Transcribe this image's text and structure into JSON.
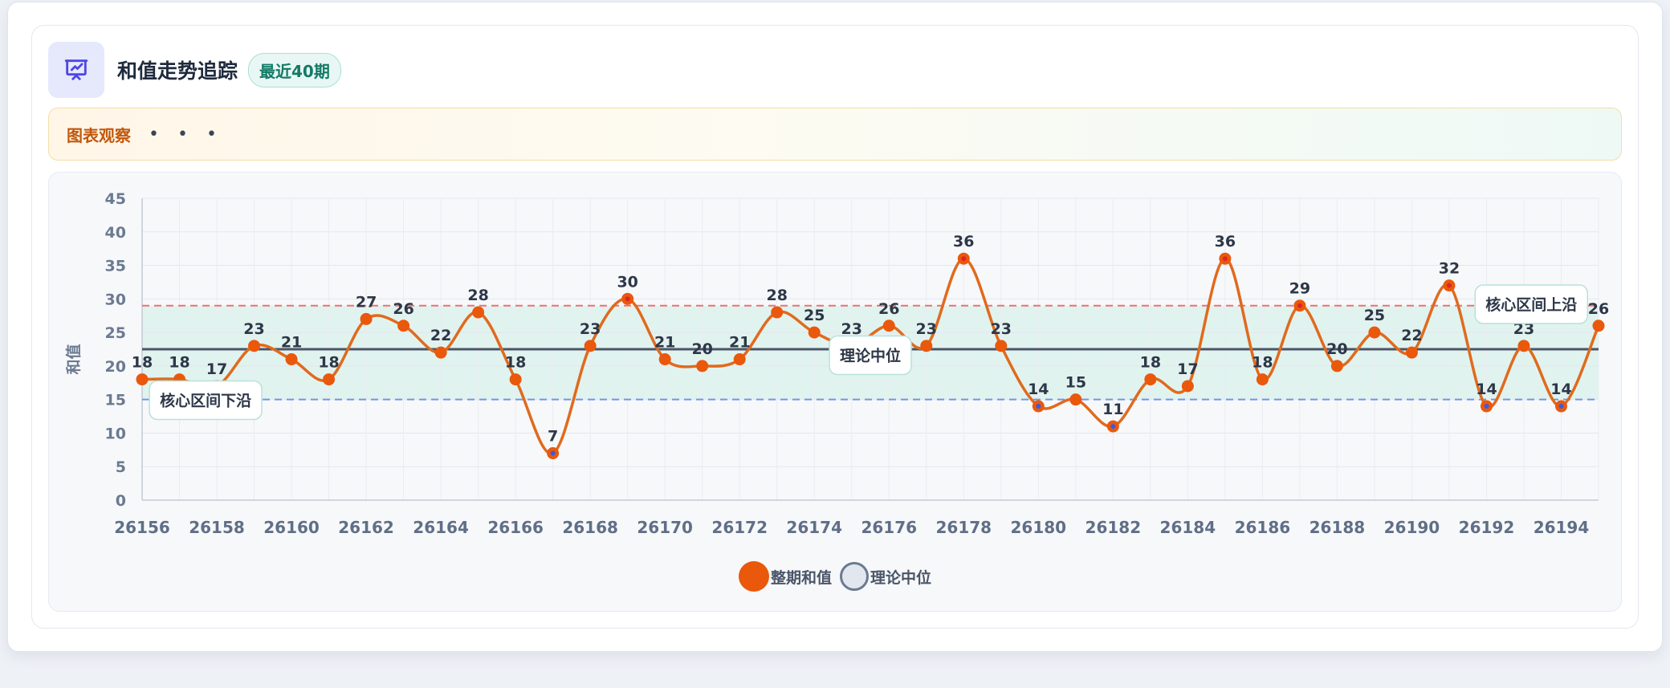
{
  "header": {
    "title": "和值走势追踪",
    "badge": "最近40期",
    "icon": "presentation-chart-icon"
  },
  "observation": {
    "label": "图表观察",
    "dots": "• • •"
  },
  "colors": {
    "series": "#e06a1e",
    "point_fill": "#ea580c",
    "point_low": "#3b5bdb",
    "point_high": "#dc2626",
    "band": "#d9f2ea",
    "upper_line": "#ef7070",
    "lower_line": "#6f94ea",
    "median_line": "#4a5568"
  },
  "chart_data": {
    "type": "line",
    "title": "",
    "xlabel": "",
    "ylabel": "和值",
    "x_start": 26156,
    "x_tick_labels": [
      "26156",
      "26158",
      "26160",
      "26162",
      "26164",
      "26166",
      "26168",
      "26170",
      "26172",
      "26174",
      "26176",
      "26178",
      "26180",
      "26182",
      "26184",
      "26186",
      "26188",
      "26190",
      "26192",
      "26194"
    ],
    "y_ticks": [
      0,
      5,
      10,
      15,
      20,
      25,
      30,
      35,
      40,
      45
    ],
    "ylim": [
      0,
      45
    ],
    "series": [
      {
        "name": "整期和值",
        "x": [
          26156,
          26157,
          26158,
          26159,
          26160,
          26161,
          26162,
          26163,
          26164,
          26165,
          26166,
          26167,
          26168,
          26169,
          26170,
          26171,
          26172,
          26173,
          26174,
          26175,
          26176,
          26177,
          26178,
          26179,
          26180,
          26181,
          26182,
          26183,
          26184,
          26185,
          26186,
          26187,
          26188,
          26189,
          26190,
          26191,
          26192,
          26193,
          26194,
          26195
        ],
        "values": [
          18,
          18,
          17,
          23,
          21,
          18,
          27,
          26,
          22,
          28,
          18,
          7,
          23,
          30,
          21,
          20,
          21,
          28,
          25,
          23,
          26,
          23,
          36,
          23,
          14,
          15,
          11,
          18,
          17,
          36,
          18,
          29,
          20,
          25,
          22,
          32,
          14,
          23,
          14,
          26
        ]
      }
    ],
    "reference_lines": {
      "median": {
        "label": "理论中位",
        "value": 22.5
      },
      "upper": {
        "label": "核心区间上沿",
        "value": 29
      },
      "lower": {
        "label": "核心区间下沿",
        "value": 15
      }
    },
    "legend": [
      "整期和值",
      "理论中位"
    ],
    "legend_position": "bottom",
    "grid": true
  }
}
